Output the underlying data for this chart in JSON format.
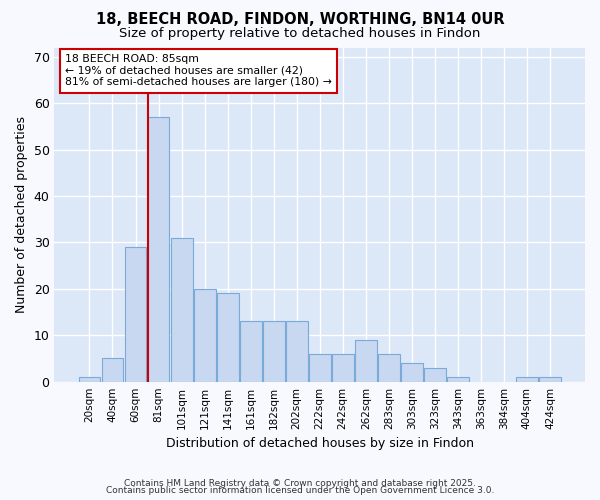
{
  "title1": "18, BEECH ROAD, FINDON, WORTHING, BN14 0UR",
  "title2": "Size of property relative to detached houses in Findon",
  "xlabel": "Distribution of detached houses by size in Findon",
  "ylabel": "Number of detached properties",
  "bin_labels": [
    "20sqm",
    "40sqm",
    "60sqm",
    "81sqm",
    "101sqm",
    "121sqm",
    "141sqm",
    "161sqm",
    "182sqm",
    "202sqm",
    "222sqm",
    "242sqm",
    "262sqm",
    "283sqm",
    "303sqm",
    "323sqm",
    "343sqm",
    "363sqm",
    "384sqm",
    "404sqm",
    "424sqm"
  ],
  "bar_heights": [
    1,
    5,
    29,
    57,
    31,
    20,
    19,
    13,
    13,
    13,
    6,
    6,
    9,
    6,
    4,
    3,
    1,
    0,
    0,
    1,
    1
  ],
  "bar_color": "#c8d8f0",
  "bar_edge_color": "#7aaad8",
  "red_line_x": 3.0,
  "red_line_color": "#cc0000",
  "annotation_text": "18 BEECH ROAD: 85sqm\n← 19% of detached houses are smaller (42)\n81% of semi-detached houses are larger (180) →",
  "annotation_box_color": "#ffffff",
  "annotation_box_edge": "#cc0000",
  "ylim": [
    0,
    72
  ],
  "yticks": [
    0,
    10,
    20,
    30,
    40,
    50,
    60,
    70
  ],
  "plot_bg_color": "#dce8f8",
  "fig_bg_color": "#f8f8ff",
  "grid_color": "#ffffff",
  "footer1": "Contains HM Land Registry data © Crown copyright and database right 2025.",
  "footer2": "Contains public sector information licensed under the Open Government Licence 3.0."
}
